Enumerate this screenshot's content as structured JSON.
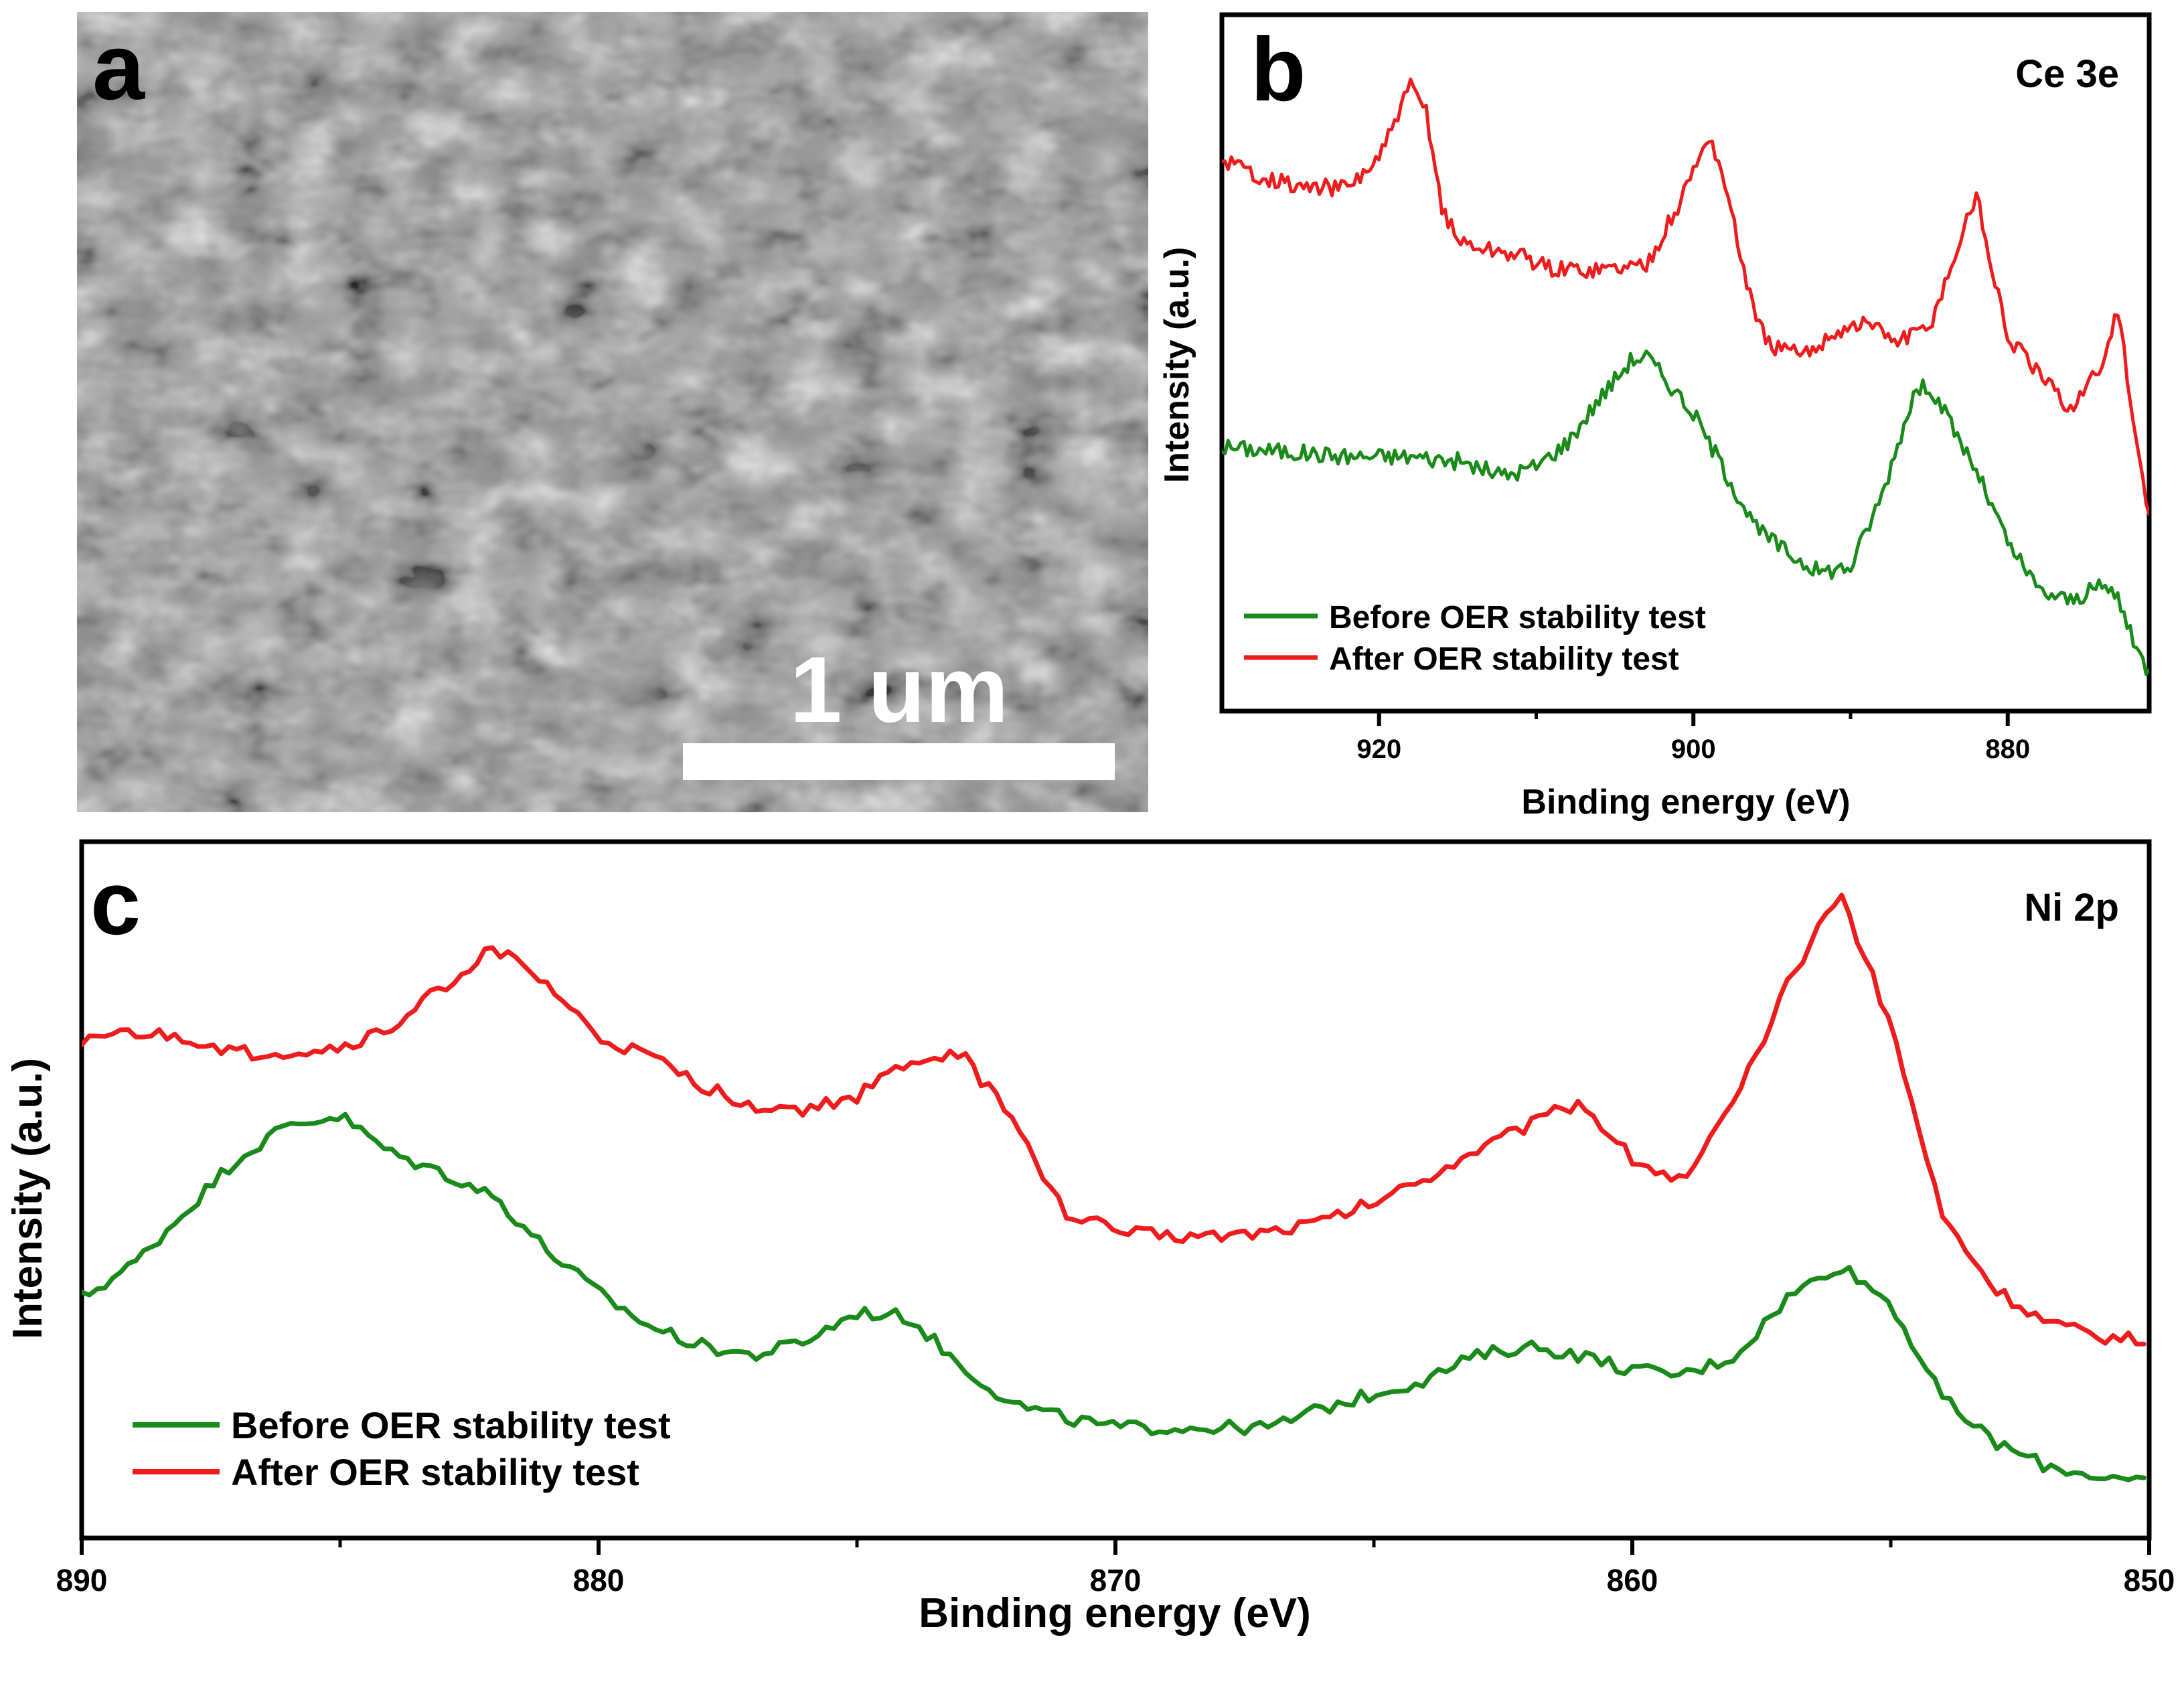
{
  "panel_a": {
    "letter": "a",
    "scale_bar_label": "1 um",
    "colors": {
      "background": "#8f8f8f",
      "scale_bar": "#ffffff"
    }
  },
  "chart_data": [
    {
      "panel": "b",
      "letter": "b",
      "type": "line",
      "title": "Ce 3e",
      "xlabel": "Binding energy (eV)",
      "ylabel": "Intensity (a.u.)",
      "xlim": [
        930,
        871
      ],
      "x_reversed": true,
      "x_ticks": [
        920,
        900,
        880
      ],
      "x_minor_ticks": [
        910,
        890
      ],
      "y_ticks_shown": false,
      "legend_placement": "bottom-left",
      "grid": false,
      "series": [
        {
          "name": "Before OER stability test",
          "color": "#1a8a1a",
          "x": [
            930,
            926,
            922,
            918,
            915,
            912,
            910,
            908,
            906,
            904,
            903,
            902,
            900,
            898,
            896,
            894,
            892,
            890,
            888,
            886,
            885,
            884,
            882,
            880,
            878,
            876,
            874,
            873,
            872,
            871
          ],
          "y": [
            0.35,
            0.34,
            0.33,
            0.33,
            0.32,
            0.29,
            0.31,
            0.36,
            0.45,
            0.53,
            0.54,
            0.5,
            0.42,
            0.3,
            0.18,
            0.13,
            0.09,
            0.1,
            0.25,
            0.46,
            0.48,
            0.42,
            0.3,
            0.15,
            0.05,
            0.03,
            0.06,
            0.04,
            -0.06,
            -0.12
          ]
        },
        {
          "name": "After OER stability test",
          "color": "#ee1c1c",
          "x": [
            930,
            928,
            925,
            922,
            920,
            918,
            917,
            916,
            915,
            913,
            911,
            909,
            906,
            903,
            901,
            899,
            898,
            897,
            896,
            895,
            893,
            891,
            889,
            887,
            885,
            883,
            882,
            881,
            880,
            878,
            876,
            874,
            873,
            872,
            871
          ],
          "y": [
            0.95,
            0.92,
            0.89,
            0.89,
            0.95,
            1.1,
            1.05,
            0.85,
            0.78,
            0.76,
            0.75,
            0.72,
            0.72,
            0.73,
            0.85,
            1.0,
            0.9,
            0.75,
            0.61,
            0.56,
            0.54,
            0.59,
            0.61,
            0.57,
            0.6,
            0.78,
            0.88,
            0.72,
            0.58,
            0.5,
            0.43,
            0.52,
            0.64,
            0.4,
            0.2
          ]
        }
      ]
    },
    {
      "panel": "c",
      "letter": "c",
      "type": "line",
      "title": "Ni 2p",
      "xlabel": "Binding energy (eV)",
      "ylabel": "Intensity (a.u.)",
      "xlim": [
        890,
        850
      ],
      "x_reversed": true,
      "x_ticks": [
        890,
        880,
        870,
        860,
        850
      ],
      "x_minor_ticks": [
        885,
        875,
        865,
        855
      ],
      "y_ticks_shown": false,
      "legend_placement": "bottom-left",
      "grid": false,
      "series": [
        {
          "name": "Before OER stability test",
          "color": "#1a8a1a",
          "x": [
            890,
            889,
            888,
            887,
            886,
            885,
            884,
            883,
            882,
            881,
            880,
            879,
            878,
            877,
            876,
            875,
            874,
            873,
            872,
            871,
            870,
            869,
            868,
            867,
            866,
            865,
            864,
            863,
            862,
            861,
            860,
            859,
            858,
            857,
            856,
            855,
            854,
            853,
            852,
            851,
            850
          ],
          "y": [
            0.25,
            0.32,
            0.43,
            0.54,
            0.61,
            0.63,
            0.55,
            0.51,
            0.46,
            0.35,
            0.26,
            0.19,
            0.15,
            0.13,
            0.16,
            0.22,
            0.21,
            0.11,
            0.03,
            0.0,
            -0.02,
            -0.02,
            -0.02,
            -0.02,
            0.02,
            0.05,
            0.08,
            0.13,
            0.15,
            0.13,
            0.1,
            0.09,
            0.13,
            0.25,
            0.32,
            0.24,
            0.04,
            -0.05,
            -0.1,
            -0.12,
            -0.14
          ]
        },
        {
          "name": "After OER stability test",
          "color": "#ee1c1c",
          "x": [
            890,
            889,
            888,
            887,
            886,
            885,
            884,
            883,
            882,
            881,
            880,
            879,
            878,
            877,
            876,
            875,
            874,
            873,
            872,
            871,
            870,
            869,
            868,
            867,
            866,
            865,
            864,
            863,
            862,
            861,
            860,
            859,
            858,
            857,
            856,
            855,
            854,
            853,
            852,
            851,
            850
          ],
          "y": [
            0.79,
            0.8,
            0.79,
            0.76,
            0.76,
            0.77,
            0.81,
            0.9,
            0.98,
            0.9,
            0.79,
            0.75,
            0.69,
            0.65,
            0.64,
            0.67,
            0.74,
            0.76,
            0.62,
            0.43,
            0.39,
            0.38,
            0.38,
            0.39,
            0.41,
            0.45,
            0.5,
            0.56,
            0.61,
            0.66,
            0.54,
            0.49,
            0.66,
            0.9,
            1.1,
            0.82,
            0.42,
            0.27,
            0.2,
            0.17,
            0.16
          ]
        }
      ]
    }
  ]
}
